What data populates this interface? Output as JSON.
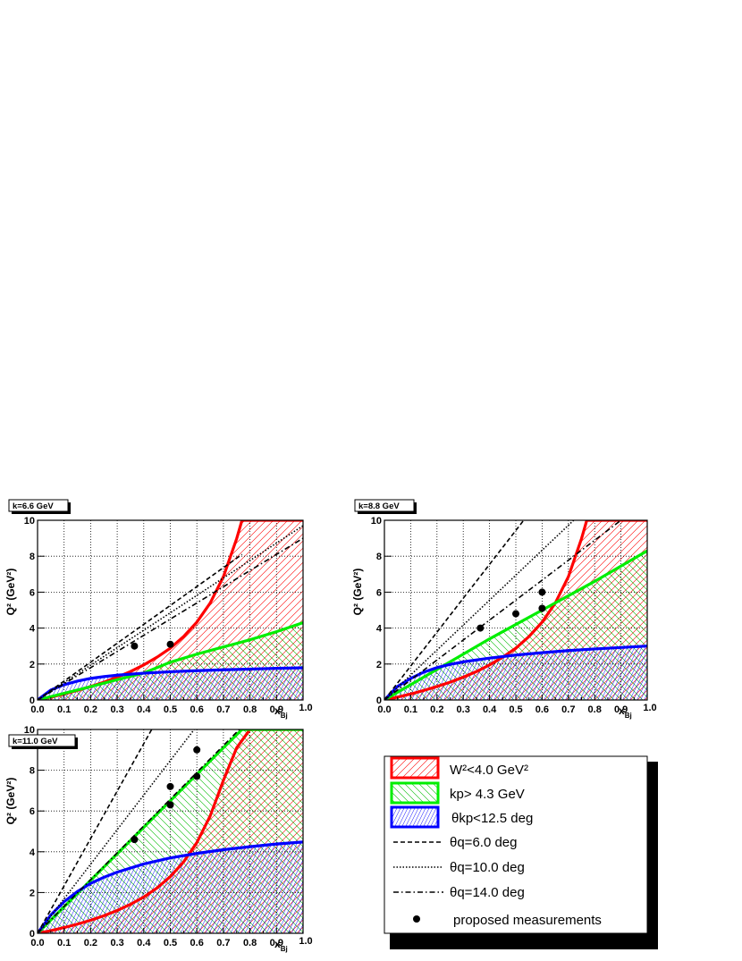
{
  "figure": {
    "legend": {
      "entries": [
        {
          "key": "w2",
          "text": "W²<4.0 GeV²",
          "color": "#ff0000"
        },
        {
          "key": "kp",
          "text": " kp>  4.3 GeV",
          "color": "#00dd00"
        },
        {
          "key": "thkp",
          "text": "θkp<12.5 deg",
          "color": "#0000ff"
        },
        {
          "key": "thq6",
          "text": "θq=6.0 deg"
        },
        {
          "key": "thq10",
          "text": "θq=10.0 deg"
        },
        {
          "key": "thq14",
          "text": "θq=14.0 deg"
        },
        {
          "key": "meas",
          "text": "proposed measurements"
        }
      ]
    }
  },
  "chart_data": [
    {
      "type": "line",
      "title": "k=6.6 GeV",
      "xlabel": "xBj",
      "ylabel": "Q² (GeV²)",
      "xlim": [
        0,
        1
      ],
      "ylim": [
        0,
        10
      ],
      "xticks": [
        "0.0",
        "0.1",
        "0.2",
        "0.3",
        "0.4",
        "0.5",
        "0.6",
        "0.7",
        "0.8",
        "0.9",
        "1.0"
      ],
      "yticks": [
        "0",
        "2",
        "4",
        "6",
        "8",
        "10"
      ],
      "grid": true,
      "series": [
        {
          "name": "W²<4.0 GeV²",
          "x": [
            0.0,
            0.05,
            0.1,
            0.15,
            0.2,
            0.25,
            0.3,
            0.35,
            0.4,
            0.45,
            0.5,
            0.55,
            0.6,
            0.65,
            0.7,
            0.75,
            0.77,
            1.0
          ],
          "y": [
            0.0,
            0.16,
            0.33,
            0.53,
            0.75,
            0.99,
            1.27,
            1.58,
            1.95,
            2.38,
            2.88,
            3.53,
            4.33,
            5.39,
            6.86,
            8.98,
            10.0,
            10.0
          ]
        },
        {
          "name": " kp>  4.3 GeV",
          "x": [
            0.0,
            0.1,
            0.2,
            0.3,
            0.4,
            0.5,
            0.6,
            0.7,
            0.8,
            0.9,
            1.0
          ],
          "y": [
            0.0,
            0.37,
            0.74,
            1.13,
            1.5,
            2.1,
            2.55,
            2.95,
            3.35,
            3.8,
            4.3
          ]
        },
        {
          "name": "θkp<12.5 deg",
          "x": [
            0.0,
            0.05,
            0.1,
            0.15,
            0.2,
            0.25,
            0.3,
            0.4,
            0.5,
            0.6,
            0.7,
            0.8,
            0.9,
            1.0
          ],
          "y": [
            0.0,
            0.55,
            0.85,
            1.05,
            1.2,
            1.3,
            1.38,
            1.49,
            1.57,
            1.63,
            1.68,
            1.72,
            1.76,
            1.79
          ]
        },
        {
          "name": "θq=6.0 deg",
          "x": [
            0.0,
            0.77
          ],
          "y": [
            0.0,
            8.1
          ]
        },
        {
          "name": "θq=10.0 deg",
          "x": [
            0.0,
            1.0
          ],
          "y": [
            0.0,
            9.7
          ]
        },
        {
          "name": "θq=14.0 deg",
          "x": [
            0.0,
            1.0
          ],
          "y": [
            0.0,
            9.0
          ]
        }
      ],
      "points": [
        [
          0.365,
          3.0
        ],
        [
          0.5,
          3.1
        ]
      ]
    },
    {
      "type": "line",
      "title": "k=8.8 GeV",
      "xlabel": "xBj",
      "ylabel": "Q² (GeV²)",
      "xlim": [
        0,
        1
      ],
      "ylim": [
        0,
        10
      ],
      "xticks": [
        "0.0",
        "0.1",
        "0.2",
        "0.3",
        "0.4",
        "0.5",
        "0.6",
        "0.7",
        "0.8",
        "0.9",
        "1.0"
      ],
      "yticks": [
        "0",
        "2",
        "4",
        "6",
        "8",
        "10"
      ],
      "grid": true,
      "series": [
        {
          "name": "W²<4.0 GeV²",
          "x": [
            0.0,
            0.05,
            0.1,
            0.15,
            0.2,
            0.25,
            0.3,
            0.35,
            0.4,
            0.45,
            0.5,
            0.55,
            0.6,
            0.65,
            0.7,
            0.75,
            0.77,
            1.0
          ],
          "y": [
            0.0,
            0.16,
            0.33,
            0.53,
            0.75,
            0.99,
            1.27,
            1.58,
            1.95,
            2.38,
            2.88,
            3.53,
            4.33,
            5.39,
            6.86,
            8.98,
            10.0,
            10.0
          ]
        },
        {
          "name": " kp>  4.3 GeV",
          "x": [
            0.0,
            0.1,
            0.2,
            0.3,
            0.4,
            0.5,
            0.6,
            0.7,
            0.8,
            0.9,
            1.0
          ],
          "y": [
            0.0,
            0.85,
            1.7,
            2.55,
            3.4,
            4.2,
            5.0,
            5.8,
            6.6,
            7.45,
            8.3
          ]
        },
        {
          "name": "θkp<12.5 deg",
          "x": [
            0.0,
            0.05,
            0.1,
            0.15,
            0.2,
            0.25,
            0.3,
            0.4,
            0.5,
            0.6,
            0.7,
            0.8,
            0.9,
            1.0
          ],
          "y": [
            0.0,
            0.75,
            1.2,
            1.55,
            1.8,
            1.98,
            2.12,
            2.33,
            2.5,
            2.63,
            2.75,
            2.84,
            2.92,
            3.0
          ]
        },
        {
          "name": "θq=6.0 deg",
          "x": [
            0.0,
            0.53
          ],
          "y": [
            0.0,
            10.0
          ]
        },
        {
          "name": "θq=10.0 deg",
          "x": [
            0.0,
            0.72
          ],
          "y": [
            0.0,
            10.0
          ]
        },
        {
          "name": "θq=14.0 deg",
          "x": [
            0.0,
            0.9
          ],
          "y": [
            0.0,
            10.0
          ]
        }
      ],
      "points": [
        [
          0.365,
          4.0
        ],
        [
          0.5,
          4.8
        ],
        [
          0.6,
          6.0
        ],
        [
          0.6,
          5.1
        ]
      ]
    },
    {
      "type": "line",
      "title": "k=11.0 GeV",
      "xlabel": "xBj",
      "ylabel": "Q² (GeV²)",
      "xlim": [
        0,
        1
      ],
      "ylim": [
        0,
        10
      ],
      "xticks": [
        "0.0",
        "0.1",
        "0.2",
        "0.3",
        "0.4",
        "0.5",
        "0.6",
        "0.7",
        "0.8",
        "0.9",
        "1.0"
      ],
      "yticks": [
        "0",
        "2",
        "4",
        "6",
        "8",
        "10"
      ],
      "grid": true,
      "series": [
        {
          "name": "W²<4.0 GeV²",
          "x": [
            0.0,
            0.05,
            0.1,
            0.15,
            0.2,
            0.25,
            0.3,
            0.35,
            0.4,
            0.45,
            0.5,
            0.55,
            0.6,
            0.65,
            0.7,
            0.75,
            0.8,
            1.0
          ],
          "y": [
            0.0,
            0.13,
            0.28,
            0.45,
            0.64,
            0.86,
            1.12,
            1.42,
            1.78,
            2.22,
            2.78,
            3.5,
            4.45,
            5.75,
            7.5,
            9.1,
            10.0,
            10.0
          ]
        },
        {
          "name": " kp>  4.3 GeV",
          "x": [
            0.0,
            0.1,
            0.2,
            0.3,
            0.4,
            0.5,
            0.6,
            0.7,
            0.77,
            1.0
          ],
          "y": [
            0.0,
            1.3,
            2.6,
            3.9,
            5.2,
            6.5,
            7.8,
            9.1,
            10.0,
            10.0
          ]
        },
        {
          "name": "θkp<12.5 deg",
          "x": [
            0.0,
            0.05,
            0.1,
            0.15,
            0.2,
            0.25,
            0.3,
            0.4,
            0.5,
            0.6,
            0.7,
            0.8,
            0.9,
            1.0
          ],
          "y": [
            0.0,
            0.9,
            1.55,
            2.05,
            2.45,
            2.75,
            3.0,
            3.4,
            3.7,
            3.92,
            4.1,
            4.25,
            4.38,
            4.48
          ]
        },
        {
          "name": "θq=6.0 deg",
          "x": [
            0.0,
            0.43
          ],
          "y": [
            0.0,
            10.0
          ]
        },
        {
          "name": "θq=10.0 deg",
          "x": [
            0.0,
            0.59
          ],
          "y": [
            0.0,
            10.0
          ]
        },
        {
          "name": "θq=14.0 deg",
          "x": [
            0.0,
            0.76
          ],
          "y": [
            0.0,
            10.0
          ]
        }
      ],
      "points": [
        [
          0.365,
          4.6
        ],
        [
          0.5,
          7.2
        ],
        [
          0.5,
          6.3
        ],
        [
          0.6,
          9.0
        ],
        [
          0.6,
          7.7
        ]
      ]
    }
  ]
}
